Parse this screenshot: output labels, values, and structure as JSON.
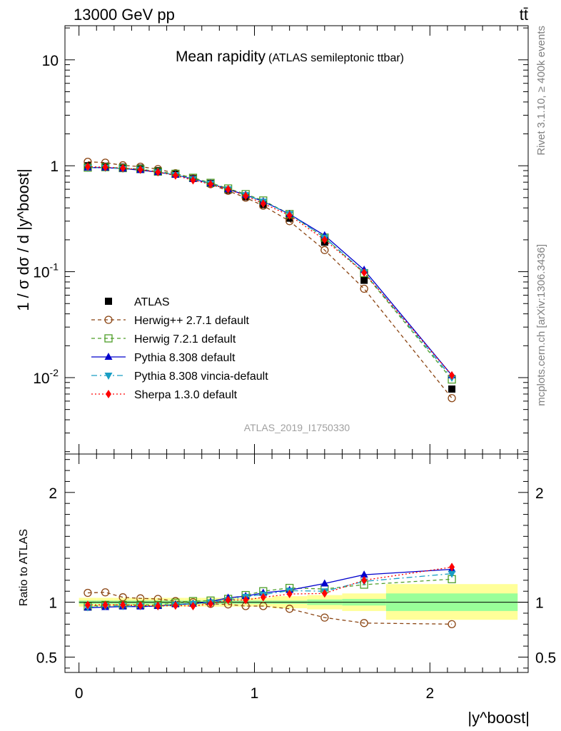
{
  "header": {
    "energy_label": "13000 GeV pp",
    "process_label": "tt̄"
  },
  "side_labels": {
    "rivet": "Rivet 3.1.10, ≥ 400k events",
    "mcplots": "mcplots.cern.ch [arXiv:1306.3436]"
  },
  "chart_data": [
    {
      "panel": "main",
      "type": "scatter",
      "title": "Mean rapidity",
      "subtitle": "(ATLAS semileptonic ttbar)",
      "watermark": "ATLAS_2019_I1750330",
      "ylabel": "1 / σ dσ / d |y^boost|",
      "xlabel": "|y^boost|",
      "yscale": "log",
      "xlim": [
        -0.08,
        2.56
      ],
      "ylim": [
        0.0019,
        21
      ],
      "x_ticks": [
        "0",
        "1",
        "2"
      ],
      "y_ticks": [
        "10",
        "1",
        "10^-1",
        "10^-2"
      ],
      "legend_position": "middle-left",
      "x": [
        0.05,
        0.15,
        0.25,
        0.35,
        0.45,
        0.55,
        0.65,
        0.75,
        0.85,
        0.95,
        1.05,
        1.2,
        1.4,
        1.625,
        2.125
      ],
      "series": [
        {
          "name": "ATLAS",
          "style": "data",
          "color": "#000000",
          "values": [
            1.0,
            0.99,
            0.97,
            0.95,
            0.9,
            0.84,
            0.76,
            0.68,
            0.59,
            0.51,
            0.43,
            0.32,
            0.19,
            0.083,
            0.0078
          ]
        },
        {
          "name": "Herwig++ 2.7.1 default",
          "style": "open-circle-dashed",
          "color": "#8b4513",
          "values": [
            1.09,
            1.07,
            1.01,
            0.98,
            0.93,
            0.85,
            0.76,
            0.67,
            0.58,
            0.5,
            0.42,
            0.3,
            0.16,
            0.069,
            0.0064
          ]
        },
        {
          "name": "Herwig 7.2.1 default",
          "style": "open-square-dashed",
          "color": "#4d9e28",
          "values": [
            0.96,
            0.97,
            0.95,
            0.93,
            0.88,
            0.84,
            0.77,
            0.69,
            0.61,
            0.54,
            0.47,
            0.35,
            0.21,
            0.097,
            0.0096
          ]
        },
        {
          "name": "Pythia 8.308 default",
          "style": "triangle-up-solid",
          "color": "#0000cc",
          "values": [
            0.96,
            0.96,
            0.94,
            0.91,
            0.87,
            0.82,
            0.75,
            0.68,
            0.6,
            0.53,
            0.46,
            0.35,
            0.22,
            0.104,
            0.0105
          ]
        },
        {
          "name": "Pythia 8.308 vincia-default",
          "style": "triangle-down-dashdot",
          "color": "#1a9ec4",
          "values": [
            0.96,
            0.96,
            0.94,
            0.92,
            0.87,
            0.82,
            0.75,
            0.68,
            0.6,
            0.53,
            0.46,
            0.35,
            0.21,
            0.099,
            0.01
          ]
        },
        {
          "name": "Sherpa 1.3.0 default",
          "style": "diamond-dotted",
          "color": "#ff0000",
          "values": [
            0.98,
            0.97,
            0.95,
            0.92,
            0.87,
            0.81,
            0.73,
            0.67,
            0.6,
            0.52,
            0.44,
            0.34,
            0.2,
            0.098,
            0.0105
          ]
        }
      ]
    },
    {
      "panel": "ratio",
      "type": "scatter",
      "ylabel": "Ratio to ATLAS",
      "xlabel": "|y^boost|",
      "ylim": [
        0.36,
        2.35
      ],
      "y_ticks": [
        "2",
        "1",
        "0.5"
      ],
      "x_ticks": [
        "0",
        "1",
        "2"
      ],
      "x": [
        0.05,
        0.15,
        0.25,
        0.35,
        0.45,
        0.55,
        0.65,
        0.75,
        0.85,
        0.95,
        1.05,
        1.2,
        1.4,
        1.625,
        2.125
      ],
      "uncertainty_bands": {
        "bin_edges": [
          0.0,
          0.1,
          0.2,
          0.3,
          0.4,
          0.5,
          0.6,
          0.7,
          0.8,
          0.9,
          1.0,
          1.1,
          1.3,
          1.5,
          1.75,
          2.5
        ],
        "inner_lo": [
          0.985,
          0.985,
          0.985,
          0.985,
          0.985,
          0.985,
          0.985,
          0.985,
          0.985,
          0.985,
          0.985,
          0.985,
          0.975,
          0.97,
          0.92
        ],
        "inner_hi": [
          1.015,
          1.015,
          1.015,
          1.015,
          1.015,
          1.015,
          1.015,
          1.015,
          1.015,
          1.015,
          1.015,
          1.015,
          1.025,
          1.03,
          1.08
        ],
        "outer_lo": [
          0.96,
          0.96,
          0.96,
          0.96,
          0.96,
          0.96,
          0.96,
          0.96,
          0.96,
          0.96,
          0.96,
          0.945,
          0.935,
          0.92,
          0.84
        ],
        "outer_hi": [
          1.04,
          1.04,
          1.04,
          1.04,
          1.04,
          1.04,
          1.04,
          1.04,
          1.04,
          1.04,
          1.04,
          1.055,
          1.065,
          1.08,
          1.165
        ]
      },
      "series": [
        {
          "name": "Herwig++ 2.7.1 default",
          "color": "#8b4513",
          "values": [
            1.085,
            1.09,
            1.045,
            1.035,
            1.03,
            1.01,
            1.0,
            0.985,
            0.98,
            0.965,
            0.965,
            0.94,
            0.86,
            0.81,
            0.8
          ]
        },
        {
          "name": "Herwig 7.2.1 default",
          "color": "#4d9e28",
          "values": [
            0.96,
            0.975,
            0.975,
            0.975,
            0.975,
            0.995,
            1.01,
            1.015,
            1.03,
            1.065,
            1.1,
            1.13,
            1.12,
            1.16,
            1.21
          ]
        },
        {
          "name": "Pythia 8.308 default",
          "color": "#0000cc",
          "values": [
            0.95,
            0.955,
            0.96,
            0.96,
            0.965,
            0.98,
            0.985,
            1.005,
            1.04,
            1.055,
            1.085,
            1.11,
            1.17,
            1.25,
            1.3
          ]
        },
        {
          "name": "Pythia 8.308 vincia-default",
          "color": "#1a9ec4",
          "values": [
            0.955,
            0.965,
            0.965,
            0.965,
            0.965,
            0.975,
            0.985,
            1.0,
            1.02,
            1.05,
            1.07,
            1.105,
            1.1,
            1.19,
            1.26
          ]
        },
        {
          "name": "Sherpa 1.3.0 default",
          "color": "#ff0000",
          "values": [
            0.975,
            0.975,
            0.975,
            0.97,
            0.965,
            0.97,
            0.965,
            0.985,
            1.02,
            1.02,
            1.045,
            1.075,
            1.08,
            1.2,
            1.32
          ]
        }
      ]
    }
  ]
}
